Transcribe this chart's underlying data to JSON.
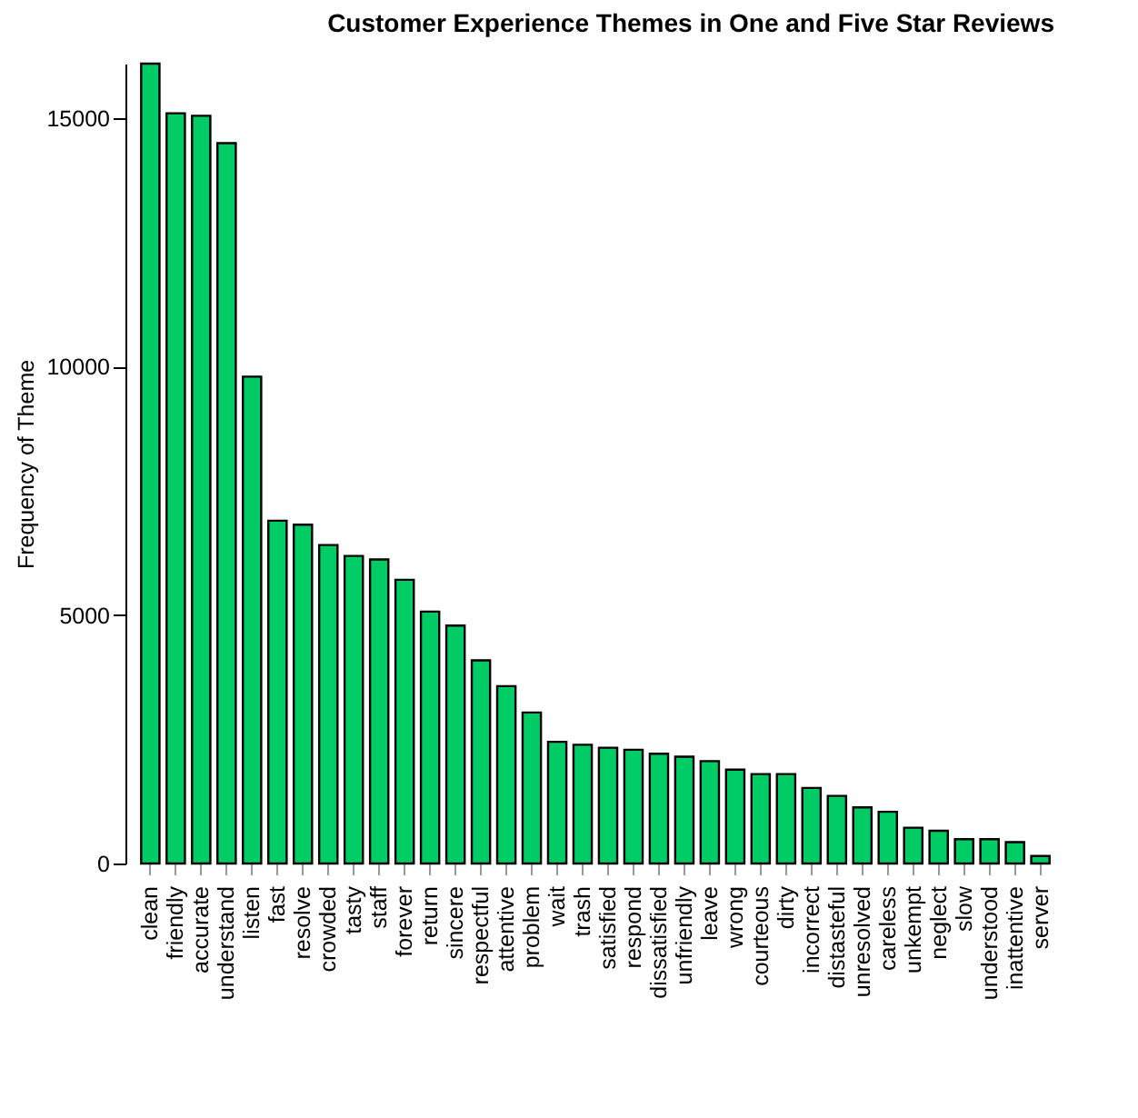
{
  "chart_data": {
    "type": "bar",
    "title": "Customer Experience Themes in One and Five Star Reviews",
    "ylabel": "Frequency of Theme",
    "categories": [
      "clean",
      "friendly",
      "accurate",
      "understand",
      "listen",
      "fast",
      "resolve",
      "crowded",
      "tasty",
      "staff",
      "forever",
      "return",
      "sincere",
      "respectful",
      "attentive",
      "problem",
      "wait",
      "trash",
      "satisfied",
      "respond",
      "dissatisfied",
      "unfriendly",
      "leave",
      "wrong",
      "courteous",
      "dirty",
      "incorrect",
      "distasteful",
      "unresolved",
      "careless",
      "unkempt",
      "neglect",
      "slow",
      "understood",
      "inattentive",
      "server"
    ],
    "values": [
      16100,
      15100,
      15050,
      14500,
      9800,
      6900,
      6820,
      6410,
      6190,
      6120,
      5710,
      5070,
      4790,
      4090,
      3570,
      3040,
      2450,
      2390,
      2330,
      2290,
      2210,
      2150,
      2060,
      1890,
      1800,
      1800,
      1520,
      1360,
      1130,
      1040,
      720,
      660,
      490,
      490,
      430,
      150
    ],
    "color": "#00cc66",
    "ylim": [
      0,
      16100
    ],
    "yticks": [
      0,
      5000,
      10000,
      15000
    ],
    "grid": false
  }
}
